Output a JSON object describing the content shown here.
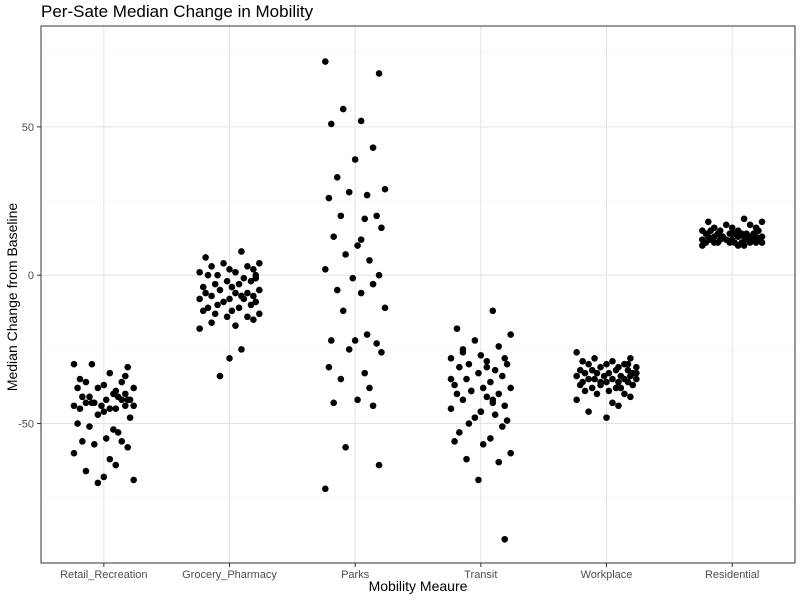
{
  "chart_data": {
    "type": "scatter",
    "title": "Per-Sate Median Change in Mobility",
    "xlabel": "Mobility Meaure",
    "ylabel": "Median Change from Baseline",
    "categories": [
      "Retail_Recreation",
      "Grocery_Pharmacy",
      "Parks",
      "Transit",
      "Workplace",
      "Residential"
    ],
    "ylim": [
      -97,
      84
    ],
    "yticks": [
      -50,
      0,
      50
    ],
    "grid": true,
    "jitter": [
      [
        -0.25,
        0.2,
        -0.1,
        0.05,
        -0.2,
        0.15,
        0.0,
        -0.15,
        0.25,
        -0.05,
        0.1,
        -0.22,
        0.18,
        -0.12,
        0.08,
        0.22,
        -0.18,
        0.02,
        -0.08,
        0.12,
        -0.25,
        0.2,
        -0.02,
        0.15,
        -0.15,
        0.05,
        0.25,
        -0.1,
        0.1,
        -0.2,
        0.0,
        0.18,
        -0.05,
        0.22,
        -0.22,
        0.08,
        -0.12,
        0.12,
        0.02,
        -0.18,
        0.15,
        -0.08,
        0.2,
        -0.25,
        0.05,
        0.1,
        -0.15,
        0.0,
        0.25,
        -0.05,
        0.18
      ],
      [
        0.1,
        -0.2,
        0.25,
        -0.05,
        0.15,
        -0.15,
        0.0,
        0.2,
        -0.25,
        0.05,
        -0.1,
        0.22,
        -0.18,
        0.12,
        -0.02,
        0.18,
        -0.12,
        0.08,
        -0.22,
        0.02,
        0.25,
        -0.08,
        0.15,
        -0.2,
        0.05,
        -0.15,
        0.1,
        0.2,
        -0.25,
        0.0,
        0.12,
        -0.05,
        0.22,
        -0.1,
        0.18,
        -0.18,
        0.08,
        -0.22,
        0.02,
        0.25,
        -0.12,
        0.15,
        -0.02,
        0.2,
        -0.15,
        0.05,
        -0.25,
        0.1,
        0.0,
        -0.08,
        0.22
      ]
    ],
    "series": [
      {
        "name": "Retail_Recreation",
        "values": [
          -30,
          -31,
          -30,
          -33,
          -35,
          -36,
          -37,
          -36,
          -38,
          -38,
          -39,
          -38,
          -40,
          -41,
          -40,
          -42,
          -41,
          -42,
          -43,
          -41,
          -44,
          -42,
          -44,
          -42,
          -43,
          -45,
          -44,
          -43,
          -45,
          -45,
          -46,
          -44,
          -47,
          -48,
          -50,
          -52,
          -51,
          -53,
          -55,
          -56,
          -56,
          -57,
          -58,
          -60,
          -62,
          -64,
          -66,
          -68,
          -69,
          -70,
          -34
        ]
      },
      {
        "name": "Grocery_Pharmacy",
        "values": [
          8,
          6,
          4,
          4,
          3,
          3,
          2,
          2,
          1,
          1,
          0,
          0,
          0,
          -1,
          -2,
          -2,
          -3,
          -3,
          -4,
          -4,
          -5,
          -5,
          -6,
          -6,
          -6,
          -7,
          -7,
          -7,
          -8,
          -8,
          -8,
          -9,
          -9,
          -10,
          -10,
          -11,
          -11,
          -12,
          -12,
          -13,
          -13,
          -14,
          -14,
          -15,
          -16,
          -17,
          -18,
          -25,
          -28,
          -34,
          -1
        ]
      },
      {
        "name": "Parks",
        "values": [
          72,
          68,
          56,
          52,
          51,
          43,
          39,
          33,
          29,
          28,
          27,
          26,
          20,
          20,
          19,
          16,
          13,
          10,
          7,
          5,
          2,
          0,
          -1,
          -3,
          -5,
          -6,
          -11,
          -12,
          -20,
          -22,
          -22,
          -23,
          -25,
          -26,
          -31,
          -33,
          -35,
          -38,
          -42,
          -43,
          -44,
          -58,
          -64,
          -72,
          12
        ]
      },
      {
        "name": "Transit",
        "values": [
          -12,
          -18,
          -20,
          -22,
          -24,
          -25,
          -27,
          -28,
          -28,
          -29,
          -30,
          -30,
          -31,
          -32,
          -33,
          -34,
          -35,
          -36,
          -37,
          -38,
          -38,
          -39,
          -40,
          -40,
          -41,
          -42,
          -43,
          -44,
          -45,
          -46,
          -47,
          -48,
          -49,
          -50,
          -51,
          -53,
          -55,
          -56,
          -57,
          -60,
          -62,
          -63,
          -69,
          -89,
          -26,
          -31,
          -35,
          -42,
          -46,
          -39
        ]
      },
      {
        "name": "Workplace",
        "values": [
          -26,
          -28,
          -28,
          -29,
          -29,
          -30,
          -30,
          -30,
          -31,
          -31,
          -31,
          -32,
          -32,
          -32,
          -32,
          -33,
          -33,
          -33,
          -33,
          -34,
          -34,
          -34,
          -34,
          -35,
          -35,
          -35,
          -35,
          -35,
          -36,
          -36,
          -36,
          -36,
          -37,
          -37,
          -37,
          -38,
          -38,
          -38,
          -39,
          -39,
          -40,
          -40,
          -41,
          -42,
          -43,
          -44,
          -46,
          -48,
          -33,
          -36,
          -30
        ]
      },
      {
        "name": "Residential",
        "values": [
          19,
          18,
          18,
          17,
          17,
          16,
          16,
          16,
          15,
          15,
          15,
          15,
          15,
          14,
          14,
          14,
          14,
          14,
          14,
          14,
          13,
          13,
          13,
          13,
          13,
          13,
          13,
          13,
          12,
          12,
          12,
          12,
          12,
          12,
          12,
          12,
          11,
          11,
          11,
          11,
          11,
          11,
          11,
          11,
          11,
          10,
          10,
          10,
          14,
          13,
          12
        ]
      }
    ]
  }
}
